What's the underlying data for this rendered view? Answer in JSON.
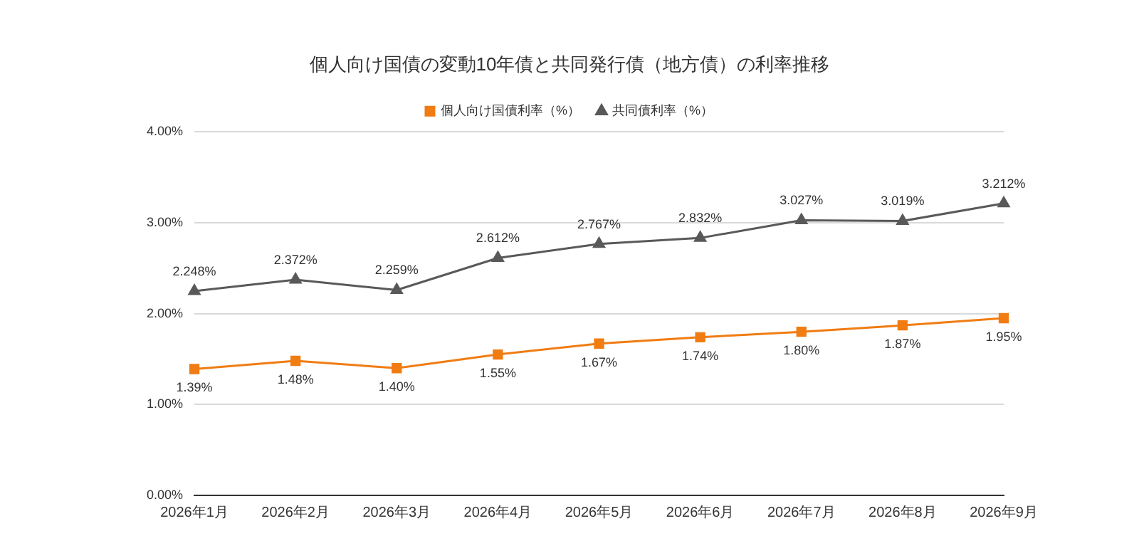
{
  "chart_data": {
    "type": "line",
    "title": "個人向け国債の変動10年債と共同発行債（地方債）の利率推移",
    "categories": [
      "2026年1月",
      "2026年2月",
      "2026年3月",
      "2026年4月",
      "2026年5月",
      "2026年6月",
      "2026年7月",
      "2026年8月",
      "2026年9月"
    ],
    "series": [
      {
        "name": "個人向け国債利率（%）",
        "color": "#f07c12",
        "marker": "square",
        "values": [
          1.39,
          1.48,
          1.4,
          1.55,
          1.67,
          1.74,
          1.8,
          1.87,
          1.95
        ],
        "value_labels": [
          "1.39%",
          "1.48%",
          "1.40%",
          "1.55%",
          "1.67%",
          "1.74%",
          "1.80%",
          "1.87%",
          "1.95%"
        ]
      },
      {
        "name": "共同債利率（%）",
        "color": "#595959",
        "marker": "triangle",
        "values": [
          2.248,
          2.372,
          2.259,
          2.612,
          2.767,
          2.832,
          3.027,
          3.019,
          3.212
        ],
        "value_labels": [
          "2.248%",
          "2.372%",
          "2.259%",
          "2.612%",
          "2.767%",
          "2.832%",
          "3.027%",
          "3.019%",
          "3.212%"
        ]
      }
    ],
    "ylim": [
      0,
      4
    ],
    "yticks": [
      {
        "value": 0,
        "label": "0.00%"
      },
      {
        "value": 1,
        "label": "1.00%"
      },
      {
        "value": 2,
        "label": "2.00%"
      },
      {
        "value": 3,
        "label": "3.00%"
      },
      {
        "value": 4,
        "label": "4.00%"
      }
    ],
    "grid": "y",
    "legend": "top",
    "line_style": "solid"
  }
}
